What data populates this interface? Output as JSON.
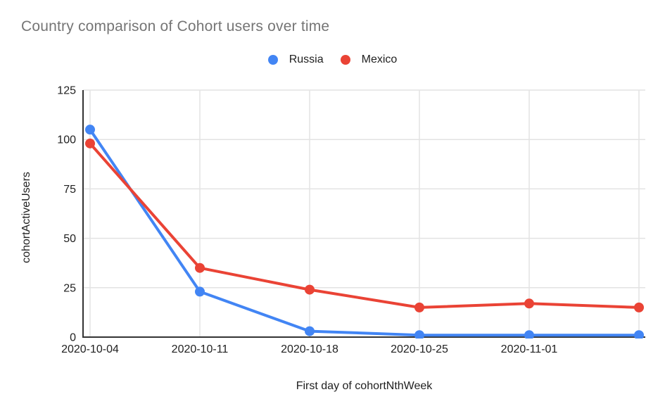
{
  "chart_data": {
    "type": "line",
    "title": "Country comparison of Cohort users over time",
    "xlabel": "First day of cohortNthWeek",
    "ylabel": "cohortActiveUsers",
    "categories": [
      "2020-10-04",
      "2020-10-11",
      "2020-10-18",
      "2020-10-25",
      "2020-11-01",
      ""
    ],
    "series": [
      {
        "name": "Russia",
        "color": "#4285F4",
        "values": [
          105,
          23,
          3,
          1,
          1,
          1
        ]
      },
      {
        "name": "Mexico",
        "color": "#EA4335",
        "values": [
          98,
          35,
          24,
          15,
          17,
          15
        ]
      }
    ],
    "yticks": [
      0,
      25,
      50,
      75,
      100,
      125
    ],
    "ylim": [
      0,
      125
    ],
    "legend_position": "top-center",
    "grid": true,
    "marker": "circle"
  },
  "colors": {
    "russia_series": "#4285F4",
    "mexico_series": "#EA4335",
    "title_text": "#757575",
    "axis_label_text": "#212121",
    "gridline": "#e3e3e3",
    "axis_line": "#333333",
    "background": "#ffffff"
  }
}
